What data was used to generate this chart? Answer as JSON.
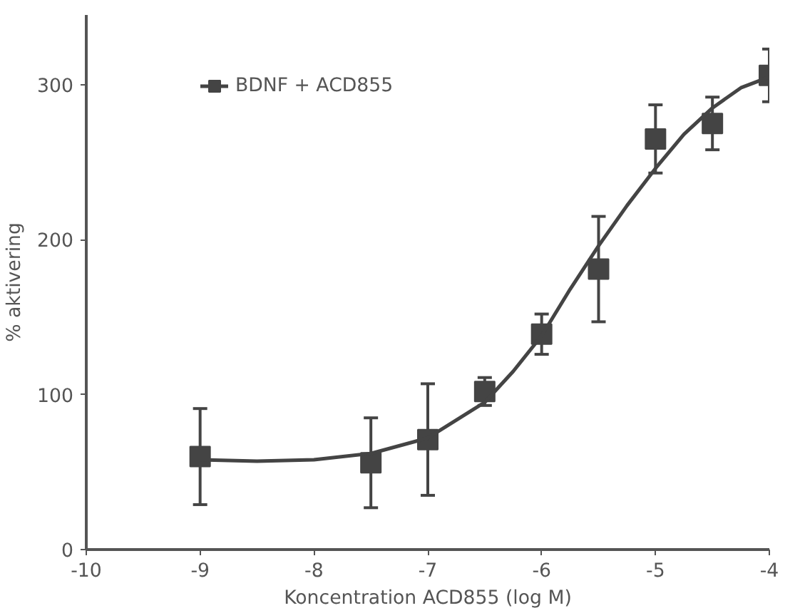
{
  "chart_data": {
    "type": "scatter",
    "xlabel": "Koncentration ACD855 (log M)",
    "ylabel": "% aktivering",
    "xlim": [
      -10,
      -4
    ],
    "xticks": [
      -10,
      -9,
      -8,
      -7,
      -6,
      -5,
      -4
    ],
    "ylim": [
      0,
      345
    ],
    "yticks": [
      0,
      100,
      200,
      300
    ],
    "grid": false,
    "legend": "top left",
    "marker": "square",
    "series": [
      {
        "name": "BDNF + ACD855",
        "color": "#444444",
        "x": [
          -9,
          -7.5,
          -7,
          -6.5,
          -6,
          -5.5,
          -5,
          -4.5,
          -4
        ],
        "values": [
          60,
          56,
          71,
          102,
          139,
          181,
          265,
          275,
          306
        ],
        "errors": [
          31,
          29,
          36,
          9,
          13,
          34,
          22,
          17,
          17
        ]
      },
      {
        "type": "line",
        "color": "#444444",
        "marker": "none",
        "line_style": "solid",
        "x": [
          -9,
          -8.5,
          -8,
          -7.5,
          -7,
          -6.5,
          -6.25,
          -6,
          -5.75,
          -5.5,
          -5.25,
          -5,
          -4.75,
          -4.5,
          -4.25,
          -4
        ],
        "values": [
          58,
          57,
          58,
          62,
          72,
          95,
          115,
          138,
          168,
          196,
          222,
          246,
          268,
          285,
          298,
          305
        ]
      }
    ]
  }
}
